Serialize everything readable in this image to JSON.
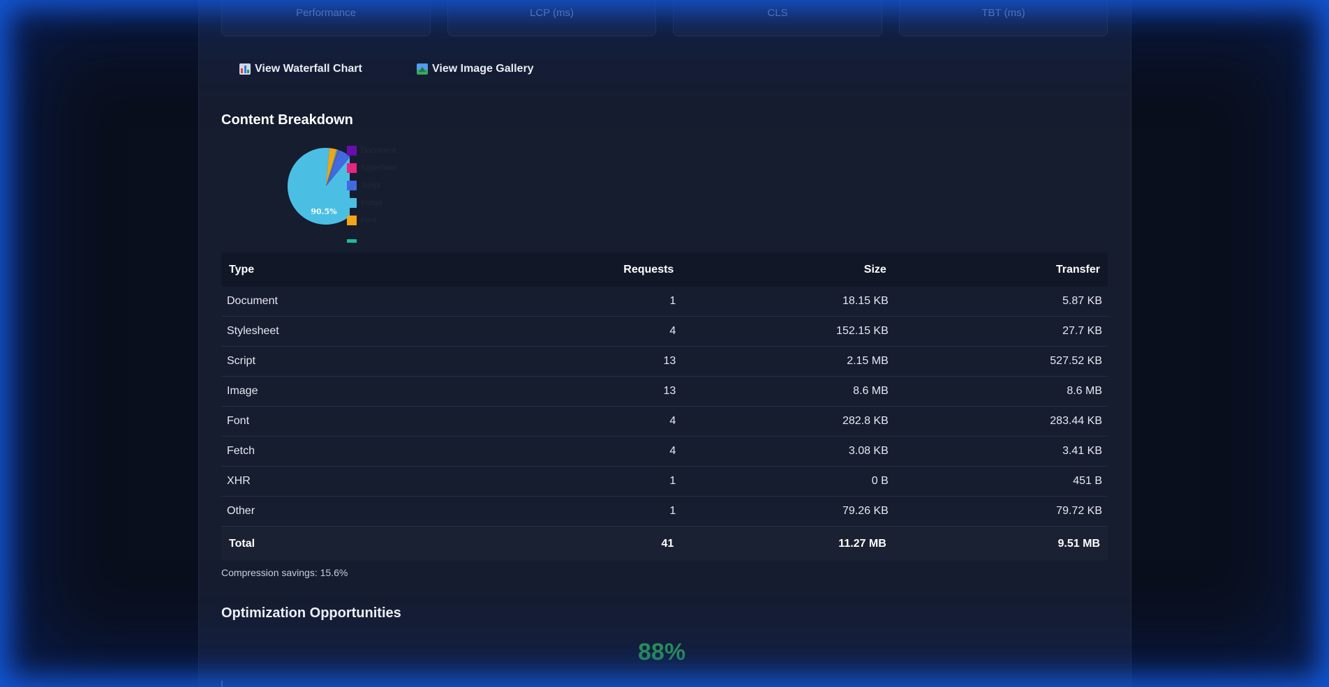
{
  "metrics": [
    "Performance",
    "LCP (ms)",
    "CLS",
    "TBT (ms)"
  ],
  "actions": {
    "waterfall_label": "View Waterfall Chart",
    "gallery_label": "View Image Gallery"
  },
  "sections": {
    "content_breakdown": "Content Breakdown",
    "optimization": "Optimization Opportunities"
  },
  "chart_data": {
    "type": "pie",
    "slices": [
      {
        "label": "Document",
        "value": 0.1,
        "color": "#6a0dad"
      },
      {
        "label": "Stylesheet",
        "value": 0.3,
        "color": "#e8247f"
      },
      {
        "label": "Script",
        "value": 5.5,
        "color": "#4169e1"
      },
      {
        "label": "Image",
        "value": 90.5,
        "color": "#4bbfe3"
      },
      {
        "label": "Font",
        "value": 3.0,
        "color": "#f2a516"
      },
      {
        "label": "",
        "value": 0.6,
        "color": "#1abc9c"
      }
    ],
    "visible_labels": [
      "90.5%"
    ]
  },
  "table": {
    "headers": [
      "Type",
      "Requests",
      "Size",
      "Transfer"
    ],
    "rows": [
      [
        "Document",
        "1",
        "18.15 KB",
        "5.87 KB"
      ],
      [
        "Stylesheet",
        "4",
        "152.15 KB",
        "27.7 KB"
      ],
      [
        "Script",
        "13",
        "2.15 MB",
        "527.52 KB"
      ],
      [
        "Image",
        "13",
        "8.6 MB",
        "8.6 MB"
      ],
      [
        "Font",
        "4",
        "282.8 KB",
        "283.44 KB"
      ],
      [
        "Fetch",
        "4",
        "3.08 KB",
        "3.41 KB"
      ],
      [
        "XHR",
        "1",
        "0 B",
        "451 B"
      ],
      [
        "Other",
        "1",
        "79.26 KB",
        "79.72 KB"
      ]
    ],
    "total": [
      "Total",
      "41",
      "11.27 MB",
      "9.51 MB"
    ]
  },
  "compression": "Compression savings: 15.6%",
  "score": "88%",
  "colors": {
    "accent_blue": "#1a5ae0",
    "score_green": "#34a853",
    "panel_bg": "#161d2f"
  }
}
